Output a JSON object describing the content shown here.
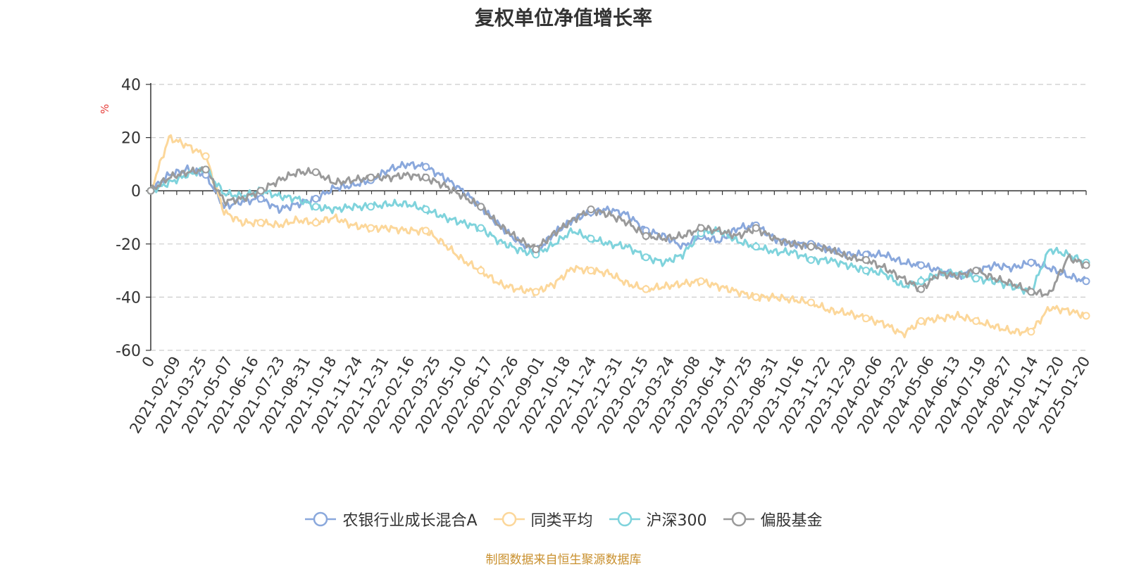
{
  "title": "复权单位净值增长率",
  "source_note": "制图数据来自恒生聚源数据库",
  "chart_data": {
    "type": "line",
    "title": "复权单位净值增长率",
    "ylabel": "%",
    "ylim": [
      -60,
      40
    ],
    "yticks": [
      40,
      20,
      0,
      -20,
      -40,
      -60
    ],
    "grid": true,
    "legend_position": "bottom",
    "x_tick_labels": [
      "0",
      "2021-02-09",
      "2021-03-25",
      "2021-05-07",
      "2021-06-16",
      "2021-07-23",
      "2021-08-31",
      "2021-10-18",
      "2021-11-24",
      "2021-12-31",
      "2022-02-16",
      "2022-03-25",
      "2022-05-10",
      "2022-06-17",
      "2022-07-26",
      "2022-09-01",
      "2022-10-18",
      "2022-11-24",
      "2022-12-31",
      "2023-02-15",
      "2023-03-24",
      "2023-05-08",
      "2023-06-14",
      "2023-07-25",
      "2023-08-31",
      "2023-10-16",
      "2023-11-22",
      "2023-12-29",
      "2024-02-06",
      "2024-03-22",
      "2024-05-06",
      "2024-06-13",
      "2024-07-19",
      "2024-08-27",
      "2024-10-14",
      "2024-11-20",
      "2025-01-20"
    ],
    "series": [
      {
        "name": "农银行业成长混合A",
        "color": "#8aa8dc",
        "values": [
          0,
          6,
          8,
          6,
          -6,
          -4,
          -3,
          -7,
          -5,
          -3,
          1,
          2,
          4,
          8,
          10,
          9,
          5,
          0,
          -6,
          -13,
          -19,
          -23,
          -16,
          -11,
          -8,
          -7,
          -9,
          -15,
          -17,
          -21,
          -17,
          -19,
          -14,
          -13,
          -18,
          -20,
          -20,
          -22,
          -24,
          -24,
          -24,
          -27,
          -28,
          -30,
          -32,
          -30,
          -28,
          -29,
          -27,
          -29,
          -32,
          -34
        ]
      },
      {
        "name": "同类平均",
        "color": "#fcd79a",
        "values": [
          0,
          20,
          17,
          13,
          -8,
          -12,
          -12,
          -13,
          -11,
          -12,
          -10,
          -13,
          -14,
          -14,
          -15,
          -15,
          -20,
          -26,
          -30,
          -35,
          -37,
          -38,
          -35,
          -29,
          -30,
          -31,
          -35,
          -37,
          -36,
          -35,
          -34,
          -36,
          -38,
          -40,
          -40,
          -41,
          -42,
          -45,
          -46,
          -48,
          -50,
          -54,
          -49,
          -48,
          -47,
          -49,
          -51,
          -53,
          -53,
          -44,
          -45,
          -47
        ]
      },
      {
        "name": "沪深300",
        "color": "#7fd3dc",
        "values": [
          0,
          3,
          6,
          8,
          -1,
          -2,
          0,
          -2,
          -3,
          -6,
          -7,
          -6,
          -6,
          -5,
          -5,
          -7,
          -10,
          -12,
          -14,
          -19,
          -22,
          -24,
          -20,
          -15,
          -18,
          -20,
          -21,
          -25,
          -27,
          -24,
          -16,
          -15,
          -19,
          -21,
          -23,
          -23,
          -26,
          -26,
          -28,
          -30,
          -31,
          -36,
          -34,
          -31,
          -31,
          -33,
          -34,
          -36,
          -38,
          -22,
          -24,
          -27
        ]
      },
      {
        "name": "偏股基金",
        "color": "#9a9a9a",
        "values": [
          0,
          5,
          7,
          8,
          -4,
          -3,
          0,
          4,
          7,
          7,
          3,
          4,
          5,
          5,
          6,
          5,
          2,
          -2,
          -6,
          -13,
          -18,
          -22,
          -16,
          -11,
          -7,
          -9,
          -12,
          -17,
          -18,
          -17,
          -14,
          -15,
          -17,
          -14,
          -18,
          -20,
          -21,
          -22,
          -25,
          -26,
          -29,
          -33,
          -37,
          -31,
          -32,
          -30,
          -33,
          -35,
          -38,
          -39,
          -25,
          -28
        ]
      }
    ]
  }
}
